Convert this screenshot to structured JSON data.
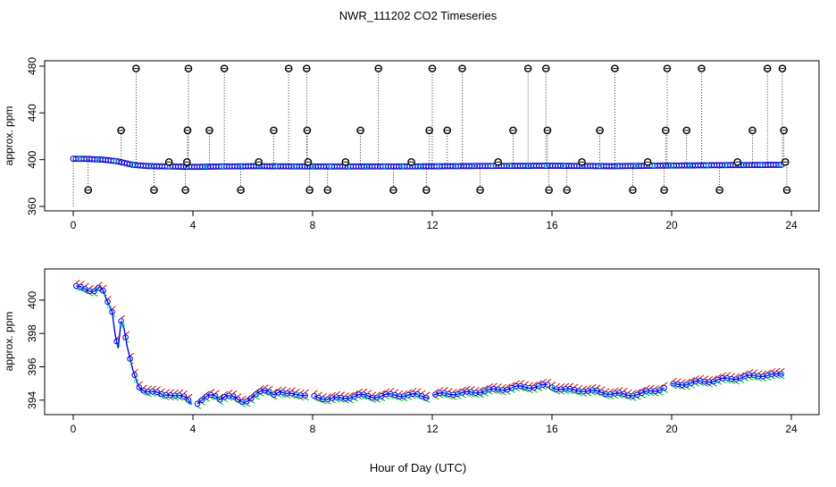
{
  "title": "NWR_111202  CO2 Timeseries",
  "xlabel": "Hour of Day (UTC)",
  "colors": {
    "circle": "#0000cc",
    "trend": "#0000ff",
    "high": "#dd0000",
    "low": "#00bb00",
    "outlier": "#000000",
    "cyan": "#00cccc"
  },
  "chart_data": [
    {
      "type": "scatter",
      "panel": "top",
      "ylabel": "approx. ppm",
      "xlim": [
        0,
        24
      ],
      "ylim": [
        360,
        480
      ],
      "xticks": [
        0,
        4,
        8,
        12,
        16,
        20,
        24
      ],
      "yticks": [
        360,
        400,
        440,
        480
      ],
      "baseline_series": {
        "name": "",
        "x": [
          0,
          0.5,
          1.0,
          1.5,
          2.0,
          2.5,
          3.0,
          4.0,
          5.0,
          6.0,
          8.0,
          10.0,
          12.0,
          14.0,
          16.0,
          18.0,
          20.0,
          22.0,
          23.7
        ],
        "y": [
          400.8,
          400.6,
          400.0,
          398.5,
          395.5,
          394.5,
          394.3,
          393.8,
          394.2,
          394.4,
          394.2,
          394.2,
          394.3,
          394.6,
          394.8,
          394.4,
          395.0,
          395.3,
          395.6
        ]
      },
      "outliers": {
        "x": [
          0.5,
          1.6,
          2.1,
          2.7,
          3.2,
          3.75,
          3.8,
          3.82,
          3.85,
          4.55,
          5.05,
          5.6,
          6.2,
          6.7,
          7.2,
          7.8,
          7.82,
          7.85,
          7.9,
          8.5,
          9.1,
          9.6,
          10.2,
          10.7,
          11.3,
          11.8,
          11.9,
          12.0,
          12.5,
          13.0,
          13.6,
          14.2,
          14.7,
          15.2,
          15.8,
          15.85,
          15.9,
          16.5,
          17.0,
          17.6,
          18.1,
          18.7,
          19.2,
          19.75,
          19.8,
          19.85,
          20.5,
          21.0,
          21.6,
          22.2,
          22.7,
          23.2,
          23.7,
          23.75,
          23.8,
          23.85
        ],
        "y": [
          374,
          425,
          478,
          374,
          398,
          374,
          398,
          425,
          478,
          425,
          478,
          374,
          398,
          425,
          478,
          478,
          425,
          398,
          374,
          374,
          398,
          425,
          478,
          374,
          398,
          374,
          425,
          478,
          425,
          478,
          374,
          398,
          425,
          478,
          478,
          425,
          374,
          374,
          398,
          425,
          478,
          374,
          398,
          374,
          425,
          478,
          425,
          478,
          374,
          398,
          425,
          478,
          478,
          425,
          398,
          374
        ]
      }
    },
    {
      "type": "line",
      "panel": "bottom",
      "ylabel": "approx. ppm",
      "xlim": [
        0,
        24
      ],
      "ylim": [
        393.4,
        401.6
      ],
      "xticks": [
        0,
        4,
        8,
        12,
        16,
        20,
        24
      ],
      "yticks": [
        394,
        396,
        398,
        400
      ],
      "gaps": [
        [
          3.95,
          4.1
        ],
        [
          7.8,
          8.0
        ],
        [
          11.95,
          12.05
        ],
        [
          15.9,
          16.0
        ],
        [
          19.8,
          20.0
        ]
      ],
      "series": [
        {
          "name": "",
          "x": [
            0.1,
            0.3,
            0.5,
            0.7,
            0.9,
            1.0,
            1.1,
            1.3,
            1.4,
            1.5,
            1.6,
            1.7,
            1.8,
            1.9,
            2.0,
            2.1,
            2.2,
            2.4,
            2.6,
            2.8,
            3.0,
            3.2,
            3.4,
            3.6,
            3.8,
            3.95,
            4.1,
            4.3,
            4.5,
            4.7,
            4.9,
            5.1,
            5.3,
            5.5,
            5.7,
            5.9,
            6.1,
            6.3,
            6.5,
            6.7,
            6.9,
            7.1,
            7.3,
            7.5,
            7.7,
            8.0,
            8.5,
            9.0,
            9.5,
            10.0,
            10.5,
            11.0,
            11.5,
            11.9,
            12.05,
            12.5,
            13.0,
            13.5,
            14.0,
            14.5,
            15.0,
            15.5,
            15.9,
            16.0,
            16.5,
            17.0,
            17.5,
            18.0,
            18.5,
            19.0,
            19.5,
            19.8,
            20.0,
            20.5,
            21.0,
            21.5,
            22.0,
            22.5,
            23.0,
            23.5,
            23.75
          ],
          "y": [
            400.8,
            400.7,
            400.6,
            400.6,
            400.8,
            400.5,
            400.0,
            399.3,
            398.0,
            397.2,
            398.8,
            398.3,
            397.2,
            396.4,
            395.7,
            395.2,
            394.8,
            394.6,
            394.5,
            394.4,
            394.3,
            394.4,
            394.3,
            394.2,
            394.1,
            393.8,
            393.8,
            394.0,
            394.2,
            394.3,
            394.1,
            394.3,
            394.2,
            394.0,
            393.9,
            394.1,
            394.3,
            394.5,
            394.6,
            394.4,
            394.5,
            394.3,
            394.4,
            394.4,
            394.3,
            394.2,
            394.1,
            394.1,
            394.3,
            394.2,
            394.3,
            394.3,
            394.3,
            394.2,
            394.3,
            394.4,
            394.4,
            394.5,
            394.6,
            394.7,
            394.8,
            394.8,
            394.9,
            394.8,
            394.6,
            394.6,
            394.5,
            394.4,
            394.3,
            394.4,
            394.6,
            394.8,
            394.9,
            395.0,
            395.1,
            395.2,
            395.3,
            395.4,
            395.5,
            395.5,
            395.6
          ]
        }
      ]
    }
  ]
}
